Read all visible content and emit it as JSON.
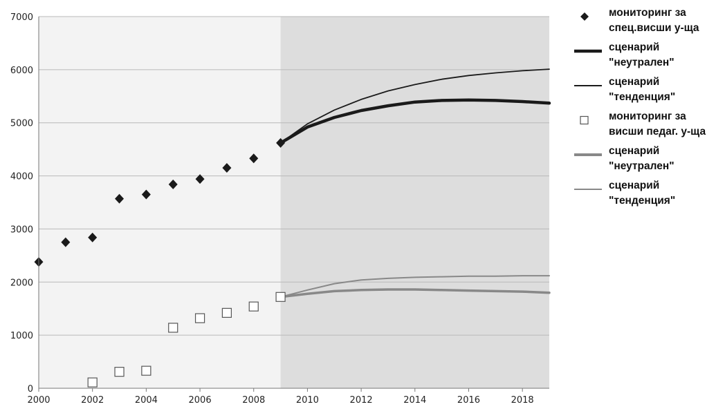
{
  "colors": {
    "background_history": "#f3f3f3",
    "background_forecast": "#dddddd",
    "grid": "#b8b8b8",
    "series_dark": "#1a1a1a",
    "series_gray": "#888888"
  },
  "legend": {
    "items": [
      {
        "label": "мониторинг за\nспец.висши у-ща",
        "symbol": "diamond"
      },
      {
        "label": "сценарий\n\"неутрален\"",
        "symbol": "thick-line-dark"
      },
      {
        "label": "сценарий\n\"тенденция\"",
        "symbol": "thin-line-dark"
      },
      {
        "label": "мониторинг за\nвисши педаг. у-ща",
        "symbol": "open-square"
      },
      {
        "label": "сценарий\n\"неутрален\"",
        "symbol": "thick-line-gray"
      },
      {
        "label": "сценарий\n\"тенденция\"",
        "symbol": "thin-line-gray"
      }
    ]
  },
  "chart_data": {
    "type": "line",
    "title": "",
    "xlabel": "",
    "ylabel": "",
    "xlim": [
      2000,
      2019
    ],
    "ylim": [
      0,
      7000
    ],
    "xticks": [
      2000,
      2002,
      2004,
      2006,
      2008,
      2010,
      2012,
      2014,
      2016,
      2018
    ],
    "yticks": [
      0,
      1000,
      2000,
      3000,
      4000,
      5000,
      6000,
      7000
    ],
    "grid": "horizontal",
    "legend_position": "right",
    "forecast_region": [
      2009,
      2019
    ],
    "series": [
      {
        "name": "мониторинг за спец.висши у-ща",
        "kind": "scatter",
        "marker": "diamond",
        "x": [
          2000,
          2001,
          2002,
          2003,
          2004,
          2005,
          2006,
          2007,
          2008,
          2009
        ],
        "y": [
          2380,
          2750,
          2840,
          3570,
          3650,
          3840,
          3940,
          4150,
          4330,
          4620
        ]
      },
      {
        "name": "сценарий \"неутрален\"",
        "kind": "line",
        "weight": "thick",
        "x": [
          2009,
          2010,
          2011,
          2012,
          2013,
          2014,
          2015,
          2016,
          2017,
          2018,
          2019
        ],
        "y": [
          4620,
          4920,
          5100,
          5230,
          5320,
          5390,
          5420,
          5430,
          5420,
          5400,
          5370
        ]
      },
      {
        "name": "сценарий \"тенденция\"",
        "kind": "line",
        "weight": "thin",
        "x": [
          2009,
          2010,
          2011,
          2012,
          2013,
          2014,
          2015,
          2016,
          2017,
          2018,
          2019
        ],
        "y": [
          4620,
          4980,
          5240,
          5440,
          5600,
          5720,
          5820,
          5890,
          5940,
          5980,
          6010
        ]
      },
      {
        "name": "мониторинг за висши педаг. у-ща",
        "kind": "scatter",
        "marker": "open-square",
        "x": [
          2002,
          2003,
          2004,
          2005,
          2006,
          2007,
          2008,
          2009
        ],
        "y": [
          110,
          310,
          330,
          1140,
          1320,
          1420,
          1540,
          1720
        ]
      },
      {
        "name": "сценарий \"неутрален\"",
        "kind": "line",
        "weight": "thick",
        "x": [
          2009,
          2010,
          2011,
          2012,
          2013,
          2014,
          2015,
          2016,
          2017,
          2018,
          2019
        ],
        "y": [
          1720,
          1780,
          1830,
          1850,
          1860,
          1860,
          1850,
          1840,
          1830,
          1820,
          1800
        ]
      },
      {
        "name": "сценарий \"тенденция\"",
        "kind": "line",
        "weight": "thin",
        "x": [
          2009,
          2010,
          2011,
          2012,
          2013,
          2014,
          2015,
          2016,
          2017,
          2018,
          2019
        ],
        "y": [
          1720,
          1850,
          1970,
          2040,
          2070,
          2090,
          2100,
          2110,
          2110,
          2120,
          2120
        ]
      }
    ]
  }
}
